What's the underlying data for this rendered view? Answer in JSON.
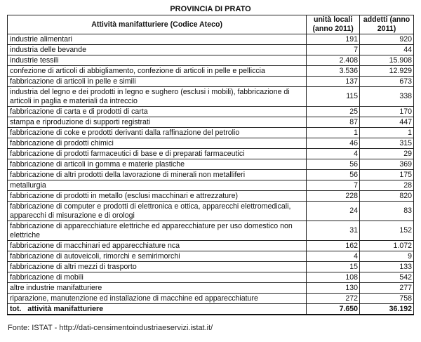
{
  "title": "PROVINCIA DI PRATO",
  "table": {
    "headers": [
      "Attività manifatturiere (Codice Ateco)",
      "unità locali (anno 2011)",
      "addetti (anno 2011)"
    ],
    "rows": [
      {
        "activity": "industrie alimentari",
        "units": "191",
        "employees": "920"
      },
      {
        "activity": "industria delle bevande",
        "units": "7",
        "employees": "44"
      },
      {
        "activity": "industrie tessili",
        "units": "2.408",
        "employees": "15.908"
      },
      {
        "activity": "confezione di articoli di abbigliamento, confezione di articoli in pelle e pelliccia",
        "units": "3.536",
        "employees": "12.929"
      },
      {
        "activity": "fabbricazione di articoli in pelle e simili",
        "units": "137",
        "employees": "673"
      },
      {
        "activity": "industria del legno e dei prodotti in legno e sughero (esclusi i mobili), fabbricazione di articoli in paglia e materiali da intreccio",
        "units": "115",
        "employees": "338"
      },
      {
        "activity": "fabbricazione di carta e di prodotti di carta",
        "units": "25",
        "employees": "170"
      },
      {
        "activity": "stampa e riproduzione di supporti registrati",
        "units": "87",
        "employees": "447"
      },
      {
        "activity": "fabbricazione di coke e prodotti derivanti dalla raffinazione del petrolio",
        "units": "1",
        "employees": "1"
      },
      {
        "activity": "fabbricazione di prodotti chimici",
        "units": "46",
        "employees": "315"
      },
      {
        "activity": "fabbricazione di prodotti farmaceutici di base e di preparati farmaceutici",
        "units": "4",
        "employees": "29"
      },
      {
        "activity": "fabbricazione di articoli in gomma e materie plastiche",
        "units": "56",
        "employees": "369"
      },
      {
        "activity": "fabbricazione di altri prodotti della lavorazione di minerali non metalliferi",
        "units": "56",
        "employees": "175"
      },
      {
        "activity": "metallurgia",
        "units": "7",
        "employees": "28"
      },
      {
        "activity": "fabbricazione di prodotti in metallo (esclusi macchinari e attrezzature)",
        "units": "228",
        "employees": "820"
      },
      {
        "activity": "fabbricazione di computer e prodotti di elettronica e ottica, apparecchi elettromedicali, apparecchi di misurazione e di orologi",
        "units": "24",
        "employees": "83"
      },
      {
        "activity": "fabbricazione di apparecchiature elettriche ed apparecchiature per uso domestico non elettriche",
        "units": "31",
        "employees": "152"
      },
      {
        "activity": "fabbricazione di macchinari ed apparecchiature nca",
        "units": "162",
        "employees": "1.072"
      },
      {
        "activity": "fabbricazione di autoveicoli, rimorchi e semirimorchi",
        "units": "4",
        "employees": "9"
      },
      {
        "activity": "fabbricazione di altri mezzi di trasporto",
        "units": "15",
        "employees": "133"
      },
      {
        "activity": "fabbricazione di mobili",
        "units": "108",
        "employees": "542"
      },
      {
        "activity": "altre industrie manifatturiere",
        "units": "130",
        "employees": "277"
      },
      {
        "activity": "riparazione, manutenzione ed installazione di macchine ed apparecchiature",
        "units": "272",
        "employees": "758"
      }
    ],
    "total": {
      "activity": "tot.   attività manifatturiere",
      "units": "7.650",
      "employees": "36.192"
    }
  },
  "source": "Fonte:  ISTAT - http://dati-censimentoindustriaeservizi.istat.it/"
}
